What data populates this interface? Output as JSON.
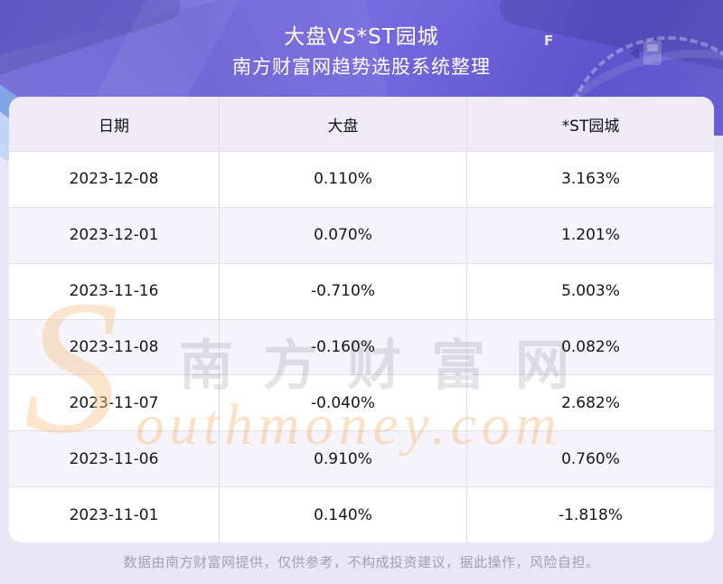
{
  "header": {
    "title": "大盘VS*ST园城",
    "subtitle": "南方财富网趋势选股系统整理"
  },
  "table": {
    "columns": [
      "日期",
      "大盘",
      "*ST园城"
    ],
    "rows": [
      {
        "date": "2023-12-08",
        "market": "0.110%",
        "stock": "3.163%"
      },
      {
        "date": "2023-12-01",
        "market": "0.070%",
        "stock": "1.201%"
      },
      {
        "date": "2023-11-16",
        "market": "-0.710%",
        "stock": "5.003%"
      },
      {
        "date": "2023-11-08",
        "market": "-0.160%",
        "stock": "0.082%"
      },
      {
        "date": "2023-11-07",
        "market": "-0.040%",
        "stock": "2.682%"
      },
      {
        "date": "2023-11-06",
        "market": "0.910%",
        "stock": "0.760%"
      },
      {
        "date": "2023-11-01",
        "market": "0.140%",
        "stock": "-1.818%"
      }
    ]
  },
  "chart_data": {
    "type": "table",
    "title": "大盘VS*ST园城",
    "subtitle": "南方财富网趋势选股系统整理",
    "columns": [
      "日期",
      "大盘",
      "*ST园城"
    ],
    "rows": [
      [
        "2023-12-08",
        "0.110%",
        "3.163%"
      ],
      [
        "2023-12-01",
        "0.070%",
        "1.201%"
      ],
      [
        "2023-11-16",
        "-0.710%",
        "5.003%"
      ],
      [
        "2023-11-08",
        "-0.160%",
        "0.082%"
      ],
      [
        "2023-11-07",
        "-0.040%",
        "2.682%"
      ],
      [
        "2023-11-06",
        "0.910%",
        "0.760%"
      ],
      [
        "2023-11-01",
        "0.140%",
        "-1.818%"
      ]
    ]
  },
  "gauge": {
    "f_label": "F"
  },
  "watermark": {
    "initial": "S",
    "cn_text": "南方财富网",
    "en_text": "outhmoney.com"
  },
  "footer": {
    "disclaimer": "数据由南方财富网提供，仅供参考，不构成投资建议，据此操作，风险自担。"
  },
  "colors": {
    "accent_purple": "#7A6FE2",
    "page_bg": "#E9E6F5",
    "thead_bg": "#EFECF8",
    "alt_row_bg": "#F6F4FB",
    "watermark_orange": "#F3B774",
    "watermark_gray": "#4A4A58"
  }
}
